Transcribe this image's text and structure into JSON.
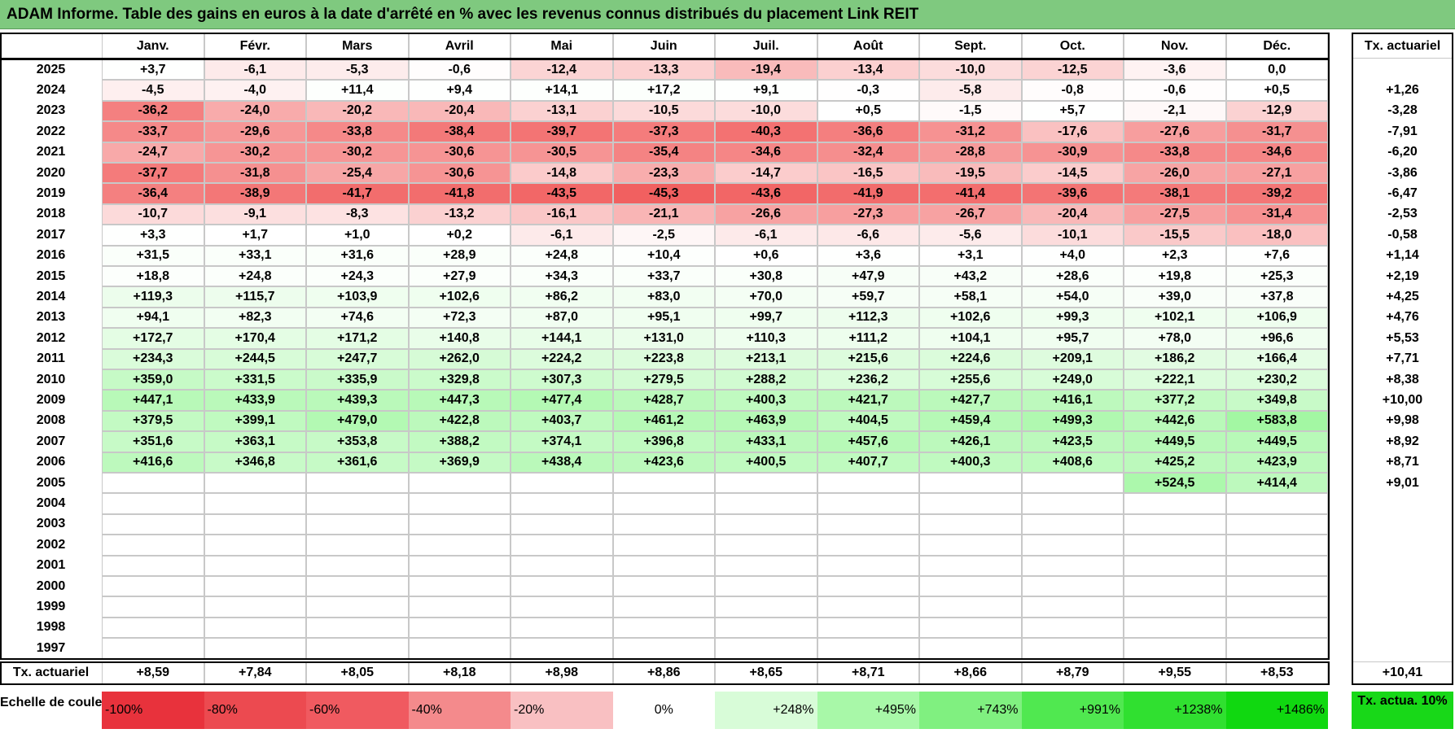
{
  "title": "ADAM Informe. Table des gains en euros à la date d'arrêté en % avec les revenus connus distribués du placement Link REIT",
  "header": {
    "months": [
      "Janv.",
      "Févr.",
      "Mars",
      "Avril",
      "Mai",
      "Juin",
      "Juil.",
      "Août",
      "Sept.",
      "Oct.",
      "Nov.",
      "Déc."
    ],
    "tx": "Tx. actuariel"
  },
  "rows": [
    {
      "year": "2025",
      "values": [
        "+3,7",
        "-6,1",
        "-5,3",
        "-0,6",
        "-12,4",
        "-13,3",
        "-19,4",
        "-13,4",
        "-10,0",
        "-12,5",
        "-3,6",
        "0,0"
      ],
      "tx": null
    },
    {
      "year": "2024",
      "values": [
        "-4,5",
        "-4,0",
        "+11,4",
        "+9,4",
        "+14,1",
        "+17,2",
        "+9,1",
        "-0,3",
        "-5,8",
        "-0,8",
        "-0,6",
        "+0,5"
      ],
      "tx": "+1,26"
    },
    {
      "year": "2023",
      "values": [
        "-36,2",
        "-24,0",
        "-20,2",
        "-20,4",
        "-13,1",
        "-10,5",
        "-10,0",
        "+0,5",
        "-1,5",
        "+5,7",
        "-2,1",
        "-12,9"
      ],
      "tx": "-3,28"
    },
    {
      "year": "2022",
      "values": [
        "-33,7",
        "-29,6",
        "-33,8",
        "-38,4",
        "-39,7",
        "-37,3",
        "-40,3",
        "-36,6",
        "-31,2",
        "-17,6",
        "-27,6",
        "-31,7"
      ],
      "tx": "-7,91"
    },
    {
      "year": "2021",
      "values": [
        "-24,7",
        "-30,2",
        "-30,2",
        "-30,6",
        "-30,5",
        "-35,4",
        "-34,6",
        "-32,4",
        "-28,8",
        "-30,9",
        "-33,8",
        "-34,6"
      ],
      "tx": "-6,20"
    },
    {
      "year": "2020",
      "values": [
        "-37,7",
        "-31,8",
        "-25,4",
        "-30,6",
        "-14,8",
        "-23,3",
        "-14,7",
        "-16,5",
        "-19,5",
        "-14,5",
        "-26,0",
        "-27,1"
      ],
      "tx": "-3,86"
    },
    {
      "year": "2019",
      "values": [
        "-36,4",
        "-38,9",
        "-41,7",
        "-41,8",
        "-43,5",
        "-45,3",
        "-43,6",
        "-41,9",
        "-41,4",
        "-39,6",
        "-38,1",
        "-39,2"
      ],
      "tx": "-6,47"
    },
    {
      "year": "2018",
      "values": [
        "-10,7",
        "-9,1",
        "-8,3",
        "-13,2",
        "-16,1",
        "-21,1",
        "-26,6",
        "-27,3",
        "-26,7",
        "-20,4",
        "-27,5",
        "-31,4"
      ],
      "tx": "-2,53"
    },
    {
      "year": "2017",
      "values": [
        "+3,3",
        "+1,7",
        "+1,0",
        "+0,2",
        "-6,1",
        "-2,5",
        "-6,1",
        "-6,6",
        "-5,6",
        "-10,1",
        "-15,5",
        "-18,0"
      ],
      "tx": "-0,58"
    },
    {
      "year": "2016",
      "values": [
        "+31,5",
        "+33,1",
        "+31,6",
        "+28,9",
        "+24,8",
        "+10,4",
        "+0,6",
        "+3,6",
        "+3,1",
        "+4,0",
        "+2,3",
        "+7,6"
      ],
      "tx": "+1,14"
    },
    {
      "year": "2015",
      "values": [
        "+18,8",
        "+24,8",
        "+24,3",
        "+27,9",
        "+34,3",
        "+33,7",
        "+30,8",
        "+47,9",
        "+43,2",
        "+28,6",
        "+19,8",
        "+25,3"
      ],
      "tx": "+2,19"
    },
    {
      "year": "2014",
      "values": [
        "+119,3",
        "+115,7",
        "+103,9",
        "+102,6",
        "+86,2",
        "+83,0",
        "+70,0",
        "+59,7",
        "+58,1",
        "+54,0",
        "+39,0",
        "+37,8"
      ],
      "tx": "+4,25"
    },
    {
      "year": "2013",
      "values": [
        "+94,1",
        "+82,3",
        "+74,6",
        "+72,3",
        "+87,0",
        "+95,1",
        "+99,7",
        "+112,3",
        "+102,6",
        "+99,3",
        "+102,1",
        "+106,9"
      ],
      "tx": "+4,76"
    },
    {
      "year": "2012",
      "values": [
        "+172,7",
        "+170,4",
        "+171,2",
        "+140,8",
        "+144,1",
        "+131,0",
        "+110,3",
        "+111,2",
        "+104,1",
        "+95,7",
        "+78,0",
        "+96,6"
      ],
      "tx": "+5,53"
    },
    {
      "year": "2011",
      "values": [
        "+234,3",
        "+244,5",
        "+247,7",
        "+262,0",
        "+224,2",
        "+223,8",
        "+213,1",
        "+215,6",
        "+224,6",
        "+209,1",
        "+186,2",
        "+166,4"
      ],
      "tx": "+7,71"
    },
    {
      "year": "2010",
      "values": [
        "+359,0",
        "+331,5",
        "+335,9",
        "+329,8",
        "+307,3",
        "+279,5",
        "+288,2",
        "+236,2",
        "+255,6",
        "+249,0",
        "+222,1",
        "+230,2"
      ],
      "tx": "+8,38"
    },
    {
      "year": "2009",
      "values": [
        "+447,1",
        "+433,9",
        "+439,3",
        "+447,3",
        "+477,4",
        "+428,7",
        "+400,3",
        "+421,7",
        "+427,7",
        "+416,1",
        "+377,2",
        "+349,8"
      ],
      "tx": "+10,00"
    },
    {
      "year": "2008",
      "values": [
        "+379,5",
        "+399,1",
        "+479,0",
        "+422,8",
        "+403,7",
        "+461,2",
        "+463,9",
        "+404,5",
        "+459,4",
        "+499,3",
        "+442,6",
        "+583,8"
      ],
      "tx": "+9,98"
    },
    {
      "year": "2007",
      "values": [
        "+351,6",
        "+363,1",
        "+353,8",
        "+388,2",
        "+374,1",
        "+396,8",
        "+433,1",
        "+457,6",
        "+426,1",
        "+423,5",
        "+449,5",
        "+449,5"
      ],
      "tx": "+8,92"
    },
    {
      "year": "2006",
      "values": [
        "+416,6",
        "+346,8",
        "+361,6",
        "+369,9",
        "+438,4",
        "+423,6",
        "+400,5",
        "+407,7",
        "+400,3",
        "+408,6",
        "+425,2",
        "+423,9"
      ],
      "tx": "+8,71"
    },
    {
      "year": "2005",
      "values": [
        null,
        null,
        null,
        null,
        null,
        null,
        null,
        null,
        null,
        null,
        "+524,5",
        "+414,4"
      ],
      "tx": "+9,01"
    },
    {
      "year": "2004",
      "values": [
        null,
        null,
        null,
        null,
        null,
        null,
        null,
        null,
        null,
        null,
        null,
        null
      ],
      "tx": null
    },
    {
      "year": "2003",
      "values": [
        null,
        null,
        null,
        null,
        null,
        null,
        null,
        null,
        null,
        null,
        null,
        null
      ],
      "tx": null
    },
    {
      "year": "2002",
      "values": [
        null,
        null,
        null,
        null,
        null,
        null,
        null,
        null,
        null,
        null,
        null,
        null
      ],
      "tx": null
    },
    {
      "year": "2001",
      "values": [
        null,
        null,
        null,
        null,
        null,
        null,
        null,
        null,
        null,
        null,
        null,
        null
      ],
      "tx": null
    },
    {
      "year": "2000",
      "values": [
        null,
        null,
        null,
        null,
        null,
        null,
        null,
        null,
        null,
        null,
        null,
        null
      ],
      "tx": null
    },
    {
      "year": "1999",
      "values": [
        null,
        null,
        null,
        null,
        null,
        null,
        null,
        null,
        null,
        null,
        null,
        null
      ],
      "tx": null
    },
    {
      "year": "1998",
      "values": [
        null,
        null,
        null,
        null,
        null,
        null,
        null,
        null,
        null,
        null,
        null,
        null
      ],
      "tx": null
    },
    {
      "year": "1997",
      "values": [
        null,
        null,
        null,
        null,
        null,
        null,
        null,
        null,
        null,
        null,
        null,
        null
      ],
      "tx": null
    }
  ],
  "footer": {
    "label": "Tx. actuariel",
    "values": [
      "+8,59",
      "+7,84",
      "+8,05",
      "+8,18",
      "+8,98",
      "+8,86",
      "+8,65",
      "+8,71",
      "+8,66",
      "+8,79",
      "+9,55",
      "+8,53"
    ],
    "tx": "+10,41"
  },
  "scale": {
    "label": "Echelle de couleur",
    "labels": [
      "-100%",
      "-80%",
      "-60%",
      "-40%",
      "-20%",
      "0%",
      "+248%",
      "+495%",
      "+743%",
      "+991%",
      "+1238%",
      "+1486%"
    ],
    "tx": "Tx. actua. 10%"
  }
}
